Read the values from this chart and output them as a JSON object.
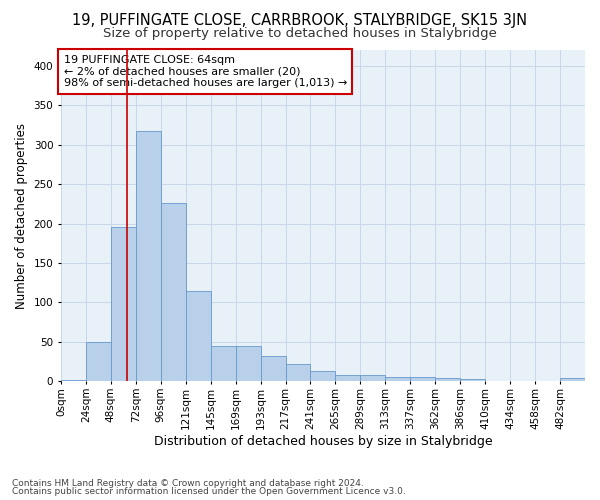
{
  "title": "19, PUFFINGATE CLOSE, CARRBROOK, STALYBRIDGE, SK15 3JN",
  "subtitle": "Size of property relative to detached houses in Stalybridge",
  "xlabel": "Distribution of detached houses by size in Stalybridge",
  "ylabel": "Number of detached properties",
  "footer_line1": "Contains HM Land Registry data © Crown copyright and database right 2024.",
  "footer_line2": "Contains public sector information licensed under the Open Government Licence v3.0.",
  "annotation_line1": "19 PUFFINGATE CLOSE: 64sqm",
  "annotation_line2": "← 2% of detached houses are smaller (20)",
  "annotation_line3": "98% of semi-detached houses are larger (1,013) →",
  "bar_color": "#b8d0ea",
  "bar_edge_color": "#6699cc",
  "vline_color": "#cc0000",
  "vline_x": 64,
  "bin_edges": [
    0,
    24,
    48,
    72,
    96,
    120,
    144,
    168,
    192,
    216,
    240,
    264,
    288,
    312,
    336,
    360,
    384,
    408,
    432,
    456,
    480,
    504
  ],
  "bar_heights": [
    2,
    50,
    196,
    317,
    226,
    114,
    45,
    45,
    32,
    22,
    13,
    8,
    8,
    5,
    5,
    4,
    3,
    0,
    0,
    0,
    4
  ],
  "xlim": [
    0,
    504
  ],
  "ylim": [
    0,
    420
  ],
  "yticks": [
    0,
    50,
    100,
    150,
    200,
    250,
    300,
    350,
    400
  ],
  "xtick_labels": [
    "0sqm",
    "24sqm",
    "48sqm",
    "72sqm",
    "96sqm",
    "121sqm",
    "145sqm",
    "169sqm",
    "193sqm",
    "217sqm",
    "241sqm",
    "265sqm",
    "289sqm",
    "313sqm",
    "337sqm",
    "362sqm",
    "386sqm",
    "410sqm",
    "434sqm",
    "458sqm",
    "482sqm"
  ],
  "grid_color": "#c8d8e8",
  "plot_bg_color": "#e8f0f8",
  "fig_bg_color": "#ffffff",
  "title_fontsize": 10.5,
  "subtitle_fontsize": 9.5,
  "ylabel_fontsize": 8.5,
  "xlabel_fontsize": 9,
  "tick_fontsize": 7.5,
  "annotation_fontsize": 8,
  "footer_fontsize": 6.5
}
